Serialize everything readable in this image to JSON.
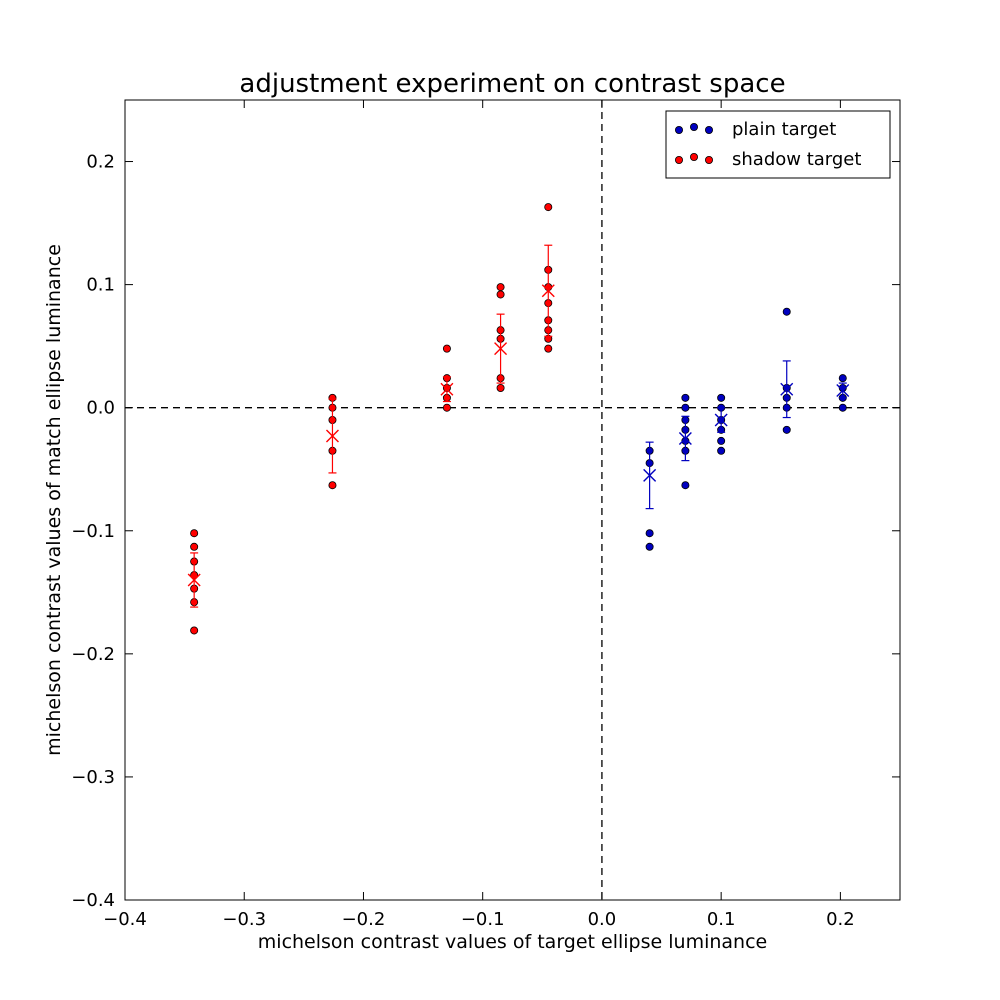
{
  "chart_data": {
    "type": "scatter",
    "title": "adjustment experiment on contrast space",
    "xlabel": "michelson contrast values of target ellipse luminance",
    "ylabel": "michelson contrast values of match ellipse luminance",
    "xlim": [
      -0.4,
      0.25
    ],
    "ylim": [
      -0.4,
      0.25
    ],
    "xticks": [
      -0.4,
      -0.3,
      -0.2,
      -0.1,
      0.0,
      0.1,
      0.2
    ],
    "yticks": [
      -0.4,
      -0.3,
      -0.2,
      -0.1,
      0.0,
      0.1,
      0.2
    ],
    "xtick_labels": [
      "−0.4",
      "−0.3",
      "−0.2",
      "−0.1",
      "0.0",
      "0.1",
      "0.2"
    ],
    "ytick_labels": [
      "−0.4",
      "−0.3",
      "−0.2",
      "−0.1",
      "0.0",
      "0.1",
      "0.2"
    ],
    "reference_lines": {
      "x": 0.0,
      "y": 0.0,
      "style": "dashed"
    },
    "legend": {
      "placement": "top-right"
    },
    "series": [
      {
        "name": "plain target",
        "color": "#0000bf",
        "points": [
          {
            "x": 0.04,
            "y": -0.035
          },
          {
            "x": 0.04,
            "y": -0.045
          },
          {
            "x": 0.04,
            "y": -0.102
          },
          {
            "x": 0.04,
            "y": -0.113
          },
          {
            "x": 0.07,
            "y": 0.008
          },
          {
            "x": 0.07,
            "y": 0.0
          },
          {
            "x": 0.07,
            "y": -0.01
          },
          {
            "x": 0.07,
            "y": -0.018
          },
          {
            "x": 0.07,
            "y": -0.027
          },
          {
            "x": 0.07,
            "y": -0.035
          },
          {
            "x": 0.07,
            "y": -0.063
          },
          {
            "x": 0.1,
            "y": 0.008
          },
          {
            "x": 0.1,
            "y": 0.0
          },
          {
            "x": 0.1,
            "y": -0.01
          },
          {
            "x": 0.1,
            "y": -0.018
          },
          {
            "x": 0.1,
            "y": -0.027
          },
          {
            "x": 0.1,
            "y": -0.035
          },
          {
            "x": 0.155,
            "y": 0.078
          },
          {
            "x": 0.155,
            "y": 0.016
          },
          {
            "x": 0.155,
            "y": 0.008
          },
          {
            "x": 0.155,
            "y": 0.0
          },
          {
            "x": 0.155,
            "y": -0.018
          },
          {
            "x": 0.202,
            "y": 0.024
          },
          {
            "x": 0.202,
            "y": 0.016
          },
          {
            "x": 0.202,
            "y": 0.008
          },
          {
            "x": 0.202,
            "y": 0.0
          }
        ],
        "means": [
          {
            "x": 0.04,
            "y": -0.055,
            "err": 0.027
          },
          {
            "x": 0.07,
            "y": -0.025,
            "err": 0.018
          },
          {
            "x": 0.1,
            "y": -0.01,
            "err": 0.01
          },
          {
            "x": 0.155,
            "y": 0.015,
            "err": 0.023
          },
          {
            "x": 0.202,
            "y": 0.014,
            "err": 0.006
          }
        ]
      },
      {
        "name": "shadow target",
        "color": "#ff0000",
        "points": [
          {
            "x": -0.342,
            "y": -0.102
          },
          {
            "x": -0.342,
            "y": -0.113
          },
          {
            "x": -0.342,
            "y": -0.125
          },
          {
            "x": -0.342,
            "y": -0.136
          },
          {
            "x": -0.342,
            "y": -0.147
          },
          {
            "x": -0.342,
            "y": -0.158
          },
          {
            "x": -0.342,
            "y": -0.181
          },
          {
            "x": -0.226,
            "y": 0.008
          },
          {
            "x": -0.226,
            "y": 0.0
          },
          {
            "x": -0.226,
            "y": -0.01
          },
          {
            "x": -0.226,
            "y": -0.035
          },
          {
            "x": -0.226,
            "y": -0.063
          },
          {
            "x": -0.13,
            "y": 0.048
          },
          {
            "x": -0.13,
            "y": 0.024
          },
          {
            "x": -0.13,
            "y": 0.016
          },
          {
            "x": -0.13,
            "y": 0.008
          },
          {
            "x": -0.13,
            "y": 0.0
          },
          {
            "x": -0.085,
            "y": 0.098
          },
          {
            "x": -0.085,
            "y": 0.092
          },
          {
            "x": -0.085,
            "y": 0.063
          },
          {
            "x": -0.085,
            "y": 0.056
          },
          {
            "x": -0.085,
            "y": 0.024
          },
          {
            "x": -0.085,
            "y": 0.016
          },
          {
            "x": -0.045,
            "y": 0.163
          },
          {
            "x": -0.045,
            "y": 0.112
          },
          {
            "x": -0.045,
            "y": 0.098
          },
          {
            "x": -0.045,
            "y": 0.085
          },
          {
            "x": -0.045,
            "y": 0.071
          },
          {
            "x": -0.045,
            "y": 0.063
          },
          {
            "x": -0.045,
            "y": 0.056
          },
          {
            "x": -0.045,
            "y": 0.048
          }
        ],
        "means": [
          {
            "x": -0.342,
            "y": -0.14,
            "err": 0.022
          },
          {
            "x": -0.226,
            "y": -0.023,
            "err": 0.03
          },
          {
            "x": -0.13,
            "y": 0.015,
            "err": 0.01
          },
          {
            "x": -0.085,
            "y": 0.048,
            "err": 0.028
          },
          {
            "x": -0.045,
            "y": 0.095,
            "err": 0.037
          }
        ]
      }
    ]
  }
}
